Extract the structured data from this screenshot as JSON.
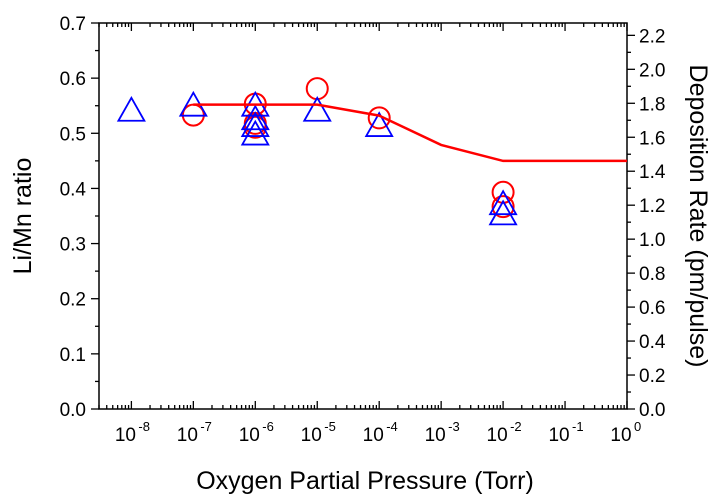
{
  "chart_data": {
    "type": "scatter",
    "xlabel": "Oxygen Partial Pressure (Torr)",
    "ylabel_left": "Li/Mn ratio",
    "ylabel_right": "Deposition Rate (pm/pulse)",
    "x_scale": "log",
    "xlim": [
      3e-09,
      1
    ],
    "ylim_left": [
      0,
      0.7
    ],
    "ylim_right": [
      0,
      2.2727
    ],
    "x_ticks": [
      {
        "value": 1e-08,
        "base": "10",
        "exp": "-8"
      },
      {
        "value": 1e-07,
        "base": "10",
        "exp": "-7"
      },
      {
        "value": 1e-06,
        "base": "10",
        "exp": "-6"
      },
      {
        "value": 1e-05,
        "base": "10",
        "exp": "-5"
      },
      {
        "value": 0.0001,
        "base": "10",
        "exp": "-4"
      },
      {
        "value": 0.001,
        "base": "10",
        "exp": "-3"
      },
      {
        "value": 0.01,
        "base": "10",
        "exp": "-2"
      },
      {
        "value": 0.1,
        "base": "10",
        "exp": "-1"
      },
      {
        "value": 1,
        "base": "10",
        "exp": "0"
      }
    ],
    "y_ticks_left": [
      "0.0",
      "0.1",
      "0.2",
      "0.3",
      "0.4",
      "0.5",
      "0.6",
      "0.7"
    ],
    "y_ticks_right": [
      "0.0",
      "0.2",
      "0.4",
      "0.6",
      "0.8",
      "1.0",
      "1.2",
      "1.4",
      "1.6",
      "1.8",
      "2.0",
      "2.2"
    ],
    "series": [
      {
        "marker": "circle",
        "color": "#ff0000",
        "axis": "left",
        "points": [
          {
            "x": 1e-07,
            "y": 0.533
          },
          {
            "x": 1e-06,
            "y": 0.553
          },
          {
            "x": 1e-06,
            "y": 0.518
          },
          {
            "x": 1e-06,
            "y": 0.511
          },
          {
            "x": 1e-05,
            "y": 0.581
          },
          {
            "x": 0.0001,
            "y": 0.528
          },
          {
            "x": 0.01,
            "y": 0.393
          },
          {
            "x": 0.01,
            "y": 0.367
          }
        ]
      },
      {
        "marker": "triangle",
        "color": "#0000ff",
        "axis": "right",
        "points": [
          {
            "x": 1e-08,
            "y": 1.75
          },
          {
            "x": 1e-07,
            "y": 1.78
          },
          {
            "x": 1e-06,
            "y": 1.78
          },
          {
            "x": 1e-06,
            "y": 1.7
          },
          {
            "x": 1e-06,
            "y": 1.66
          },
          {
            "x": 1e-06,
            "y": 1.61
          },
          {
            "x": 1e-05,
            "y": 1.75
          },
          {
            "x": 0.0001,
            "y": 1.66
          },
          {
            "x": 0.01,
            "y": 1.2
          },
          {
            "x": 0.01,
            "y": 1.14
          }
        ]
      },
      {
        "marker": "line",
        "color": "#ff0000",
        "axis": "left",
        "points": [
          {
            "x": 1e-07,
            "y": 0.552
          },
          {
            "x": 1e-05,
            "y": 0.552
          },
          {
            "x": 0.0001,
            "y": 0.532
          },
          {
            "x": 0.001,
            "y": 0.479
          },
          {
            "x": 0.01,
            "y": 0.45
          },
          {
            "x": 1,
            "y": 0.45
          }
        ]
      }
    ]
  }
}
